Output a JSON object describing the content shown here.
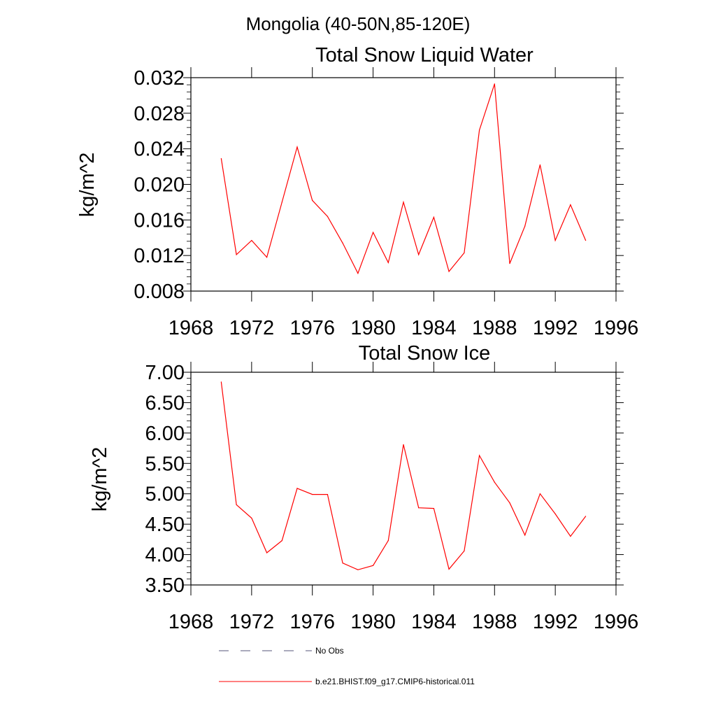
{
  "figure": {
    "title": "Mongolia (40-50N,85-120E)"
  },
  "chart_data": [
    {
      "type": "line",
      "title": "Total Snow Liquid Water",
      "xlabel": "",
      "ylabel": "kg/m^2",
      "xlim": [
        1968,
        1996
      ],
      "ylim": [
        0.008,
        0.032
      ],
      "xticks": [
        1968,
        1972,
        1976,
        1980,
        1984,
        1988,
        1992,
        1996
      ],
      "xtick_labels": [
        "1968",
        "1972",
        "1976",
        "1980",
        "1984",
        "1988",
        "1992",
        "1996"
      ],
      "yticks": [
        0.008,
        0.012,
        0.016,
        0.02,
        0.024,
        0.028,
        0.032
      ],
      "ytick_labels": [
        "0.008",
        "0.012",
        "0.016",
        "0.020",
        "0.024",
        "0.028",
        "0.032"
      ],
      "grid": false,
      "series": [
        {
          "name": "b.e21.BHIST.f09_g17.CMIP6-historical.011",
          "color": "#ff0000",
          "x": [
            1970,
            1971,
            1972,
            1973,
            1974,
            1975,
            1976,
            1977,
            1978,
            1979,
            1980,
            1981,
            1982,
            1983,
            1984,
            1985,
            1986,
            1987,
            1988,
            1989,
            1990,
            1991,
            1992,
            1993,
            1994
          ],
          "y": [
            0.0229,
            0.0121,
            0.0137,
            0.0118,
            0.018,
            0.0242,
            0.0182,
            0.0164,
            0.0134,
            0.01,
            0.0146,
            0.0112,
            0.018,
            0.0121,
            0.0163,
            0.0102,
            0.0123,
            0.0261,
            0.0313,
            0.0111,
            0.0153,
            0.0222,
            0.0137,
            0.0177,
            0.0137
          ]
        }
      ]
    },
    {
      "type": "line",
      "title": "Total Snow Ice",
      "xlabel": "",
      "ylabel": "kg/m^2",
      "xlim": [
        1968,
        1996
      ],
      "ylim": [
        3.5,
        7.0
      ],
      "xticks": [
        1968,
        1972,
        1976,
        1980,
        1984,
        1988,
        1992,
        1996
      ],
      "xtick_labels": [
        "1968",
        "1972",
        "1976",
        "1980",
        "1984",
        "1988",
        "1992",
        "1996"
      ],
      "yticks": [
        3.5,
        4.0,
        4.5,
        5.0,
        5.5,
        6.0,
        6.5,
        7.0
      ],
      "ytick_labels": [
        "3.50",
        "4.00",
        "4.50",
        "5.00",
        "5.50",
        "6.00",
        "6.50",
        "7.00"
      ],
      "grid": false,
      "series": [
        {
          "name": "b.e21.BHIST.f09_g17.CMIP6-historical.011",
          "color": "#ff0000",
          "x": [
            1970,
            1971,
            1972,
            1973,
            1974,
            1975,
            1976,
            1977,
            1978,
            1979,
            1980,
            1981,
            1982,
            1983,
            1984,
            1985,
            1986,
            1987,
            1988,
            1989,
            1990,
            1991,
            1992,
            1993,
            1994
          ],
          "y": [
            6.84,
            4.82,
            4.6,
            4.03,
            4.23,
            5.09,
            4.99,
            4.99,
            3.86,
            3.75,
            3.82,
            4.23,
            5.81,
            4.77,
            4.76,
            3.76,
            4.06,
            5.63,
            5.19,
            4.85,
            4.32,
            5.0,
            4.67,
            4.3,
            4.63
          ]
        }
      ]
    }
  ],
  "legend": {
    "placement": "bottom",
    "items": [
      {
        "label": "No Obs",
        "color": "#55557a",
        "style": "dashed"
      },
      {
        "label": "b.e21.BHIST.f09_g17.CMIP6-historical.011",
        "color": "#ff0000",
        "style": "solid"
      }
    ]
  }
}
